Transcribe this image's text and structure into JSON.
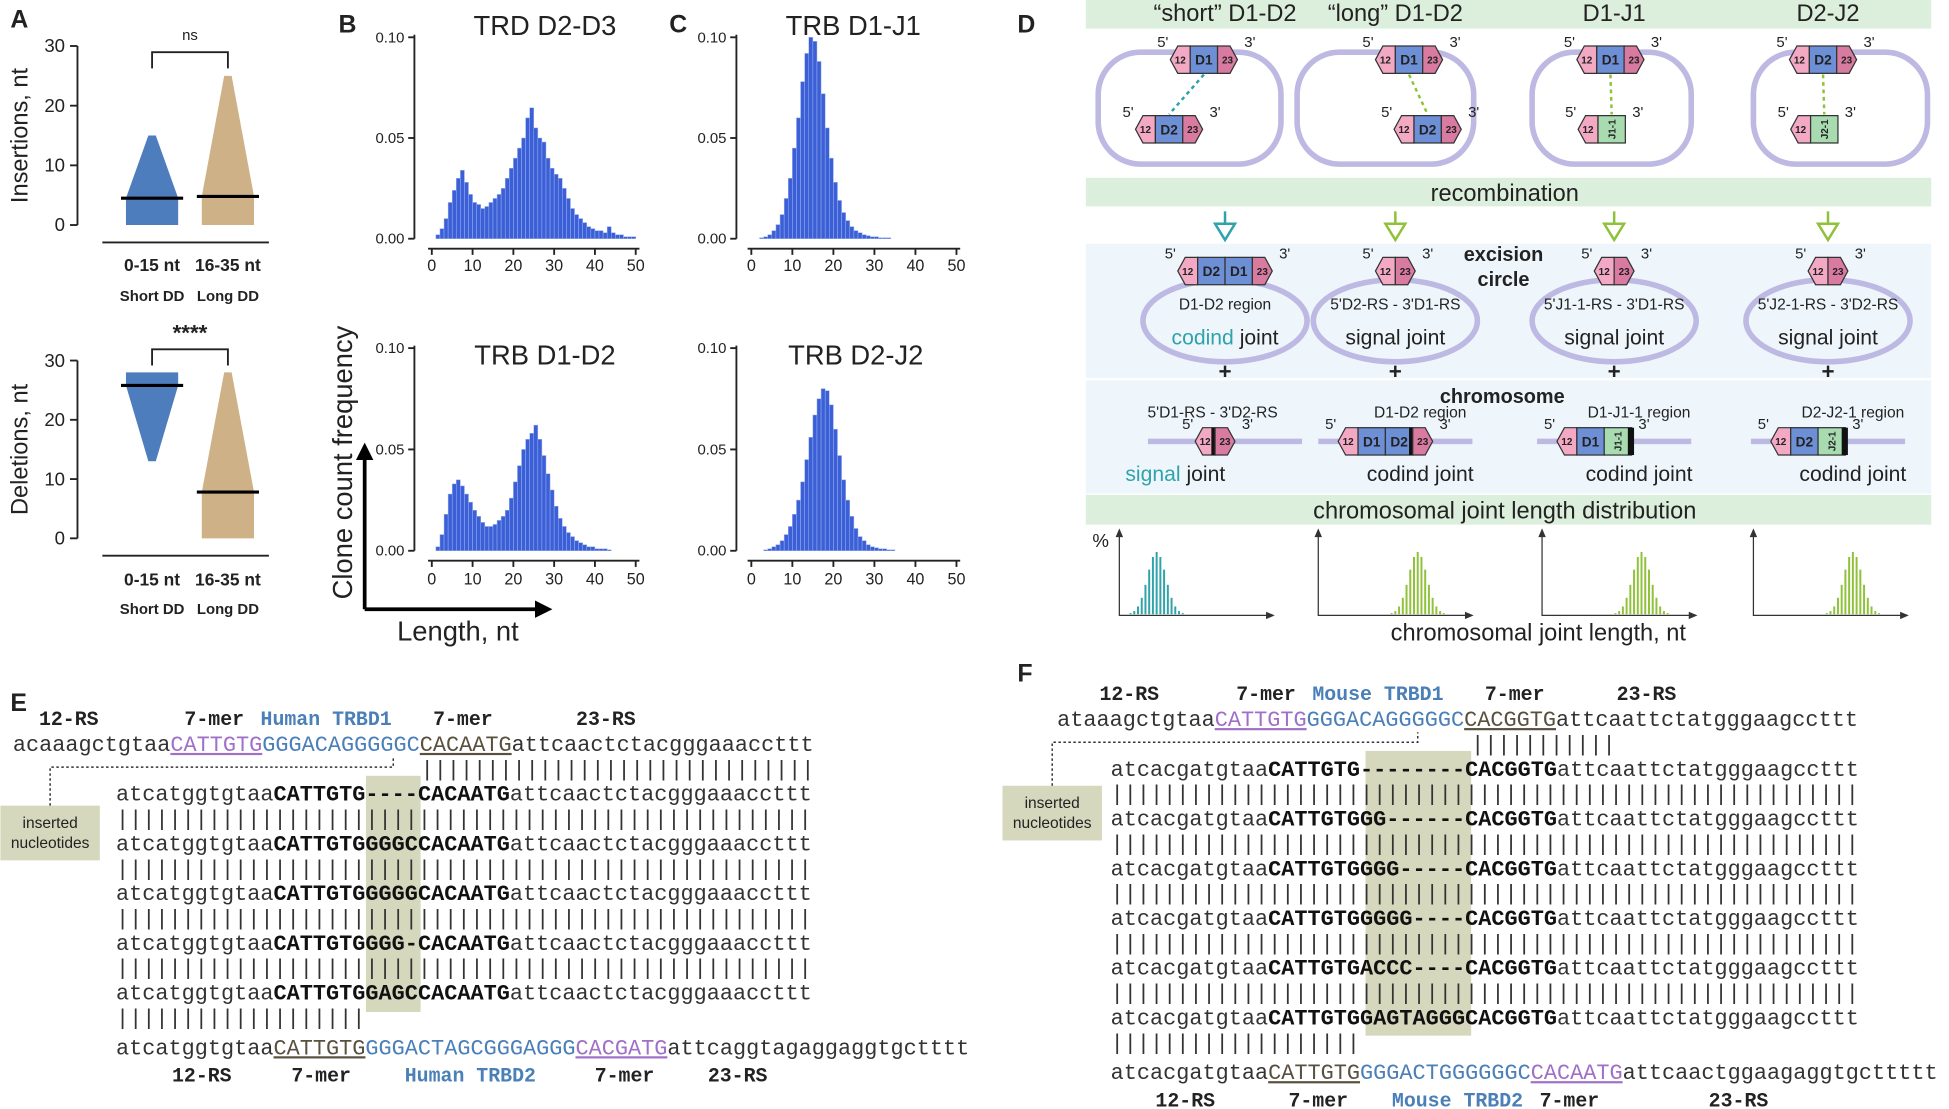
{
  "panel_labels": {
    "a": "A",
    "b": "B",
    "c": "C",
    "d": "D",
    "e": "E",
    "f": "F"
  },
  "chart_data": [
    {
      "type": "dot",
      "ylabel": "Insertions, nt",
      "categories": [
        "0-15 nt",
        "16-35 nt"
      ],
      "sublabels": [
        "Short DD",
        "Long DD"
      ],
      "significance": "ns",
      "ylim": [
        0,
        30
      ],
      "yticks": [
        0,
        10,
        20,
        30
      ],
      "groups": [
        {
          "min": 0,
          "max": 15,
          "median": 4.5,
          "color": "#3b6fb6"
        },
        {
          "min": 0,
          "max": 25,
          "median": 4.8,
          "color": "#c9a97a"
        }
      ]
    },
    {
      "type": "dot",
      "ylabel": "Deletions, nt",
      "categories": [
        "0-15 nt",
        "16-35 nt"
      ],
      "sublabels": [
        "Short DD",
        "Long DD"
      ],
      "significance": "****",
      "ylim": [
        0,
        30
      ],
      "yticks": [
        0,
        10,
        20,
        30
      ],
      "groups": [
        {
          "min": 13,
          "max": 28,
          "median": 25.8,
          "color": "#3b6fb6"
        },
        {
          "min": 0,
          "max": 28,
          "median": 7.8,
          "color": "#c9a97a"
        }
      ]
    },
    {
      "type": "histogram",
      "title": "TRD D2-D3",
      "color": "#3b5fd6",
      "bins": [
        0,
        1,
        2,
        3,
        4,
        5,
        6,
        7,
        8,
        9,
        10,
        11,
        12,
        13,
        14,
        15,
        16,
        17,
        18,
        19,
        20,
        21,
        22,
        23,
        24,
        25,
        26,
        27,
        28,
        29,
        30,
        31,
        32,
        33,
        34,
        35,
        36,
        37,
        38,
        39,
        40,
        41,
        42,
        43,
        44,
        45,
        46,
        47,
        48,
        49,
        50
      ],
      "counts": [
        0,
        0.002,
        0.005,
        0.01,
        0.018,
        0.024,
        0.03,
        0.034,
        0.028,
        0.022,
        0.018,
        0.017,
        0.015,
        0.016,
        0.018,
        0.02,
        0.022,
        0.025,
        0.03,
        0.035,
        0.04,
        0.045,
        0.05,
        0.06,
        0.065,
        0.055,
        0.05,
        0.048,
        0.04,
        0.035,
        0.032,
        0.03,
        0.025,
        0.02,
        0.015,
        0.012,
        0.01,
        0.008,
        0.006,
        0.005,
        0.004,
        0.004,
        0.003,
        0.006,
        0.003,
        0.002,
        0.002,
        0.001,
        0.001,
        0.001
      ],
      "xlim": [
        0,
        50
      ],
      "xticks": [
        0,
        10,
        20,
        30,
        40,
        50
      ],
      "ylim": [
        0,
        0.1
      ],
      "yticks": [
        {
          "value": 0,
          "label": "0.00"
        },
        {
          "value": 0.05,
          "label": "0.05"
        },
        {
          "value": 0.1,
          "label": "0.10"
        }
      ]
    },
    {
      "type": "histogram",
      "title": "TRB D1-D2",
      "color": "#3b5fd6",
      "bins": [
        0,
        1,
        2,
        3,
        4,
        5,
        6,
        7,
        8,
        9,
        10,
        11,
        12,
        13,
        14,
        15,
        16,
        17,
        18,
        19,
        20,
        21,
        22,
        23,
        24,
        25,
        26,
        27,
        28,
        29,
        30,
        31,
        32,
        33,
        34,
        35,
        36,
        37,
        38,
        39,
        40,
        41,
        42,
        43,
        44,
        45,
        46,
        47,
        48,
        49,
        50
      ],
      "counts": [
        0,
        0.002,
        0.008,
        0.018,
        0.028,
        0.033,
        0.035,
        0.032,
        0.028,
        0.024,
        0.02,
        0.017,
        0.014,
        0.012,
        0.012,
        0.013,
        0.015,
        0.017,
        0.02,
        0.026,
        0.034,
        0.042,
        0.05,
        0.055,
        0.058,
        0.062,
        0.055,
        0.047,
        0.038,
        0.03,
        0.022,
        0.016,
        0.012,
        0.009,
        0.007,
        0.005,
        0.004,
        0.003,
        0.002,
        0.002,
        0.001,
        0.001,
        0.001,
        0.0005,
        0,
        0,
        0,
        0,
        0,
        0
      ],
      "xlim": [
        0,
        50
      ],
      "xticks": [
        0,
        10,
        20,
        30,
        40,
        50
      ],
      "ylim": [
        0,
        0.1
      ],
      "yticks": [
        {
          "value": 0,
          "label": "0.00"
        },
        {
          "value": 0.05,
          "label": "0.05"
        },
        {
          "value": 0.1,
          "label": "0.10"
        }
      ]
    },
    {
      "type": "histogram",
      "title": "TRB D1-J1",
      "color": "#3b5fd6",
      "bins": [
        0,
        1,
        2,
        3,
        4,
        5,
        6,
        7,
        8,
        9,
        10,
        11,
        12,
        13,
        14,
        15,
        16,
        17,
        18,
        19,
        20,
        21,
        22,
        23,
        24,
        25,
        26,
        27,
        28,
        29,
        30,
        31,
        32,
        33,
        34,
        35,
        36,
        37,
        38,
        39,
        40,
        41,
        42,
        43,
        44,
        45,
        46,
        47,
        48,
        49,
        50
      ],
      "counts": [
        0,
        0,
        0.0005,
        0.001,
        0.002,
        0.004,
        0.007,
        0.012,
        0.02,
        0.03,
        0.045,
        0.06,
        0.078,
        0.092,
        0.1,
        0.098,
        0.088,
        0.072,
        0.055,
        0.04,
        0.028,
        0.019,
        0.013,
        0.009,
        0.006,
        0.004,
        0.003,
        0.002,
        0.0015,
        0.001,
        0.001,
        0.0005,
        0.0005,
        0.0005,
        0,
        0,
        0,
        0,
        0,
        0,
        0,
        0,
        0,
        0,
        0,
        0,
        0,
        0,
        0,
        0
      ],
      "xlim": [
        0,
        50
      ],
      "xticks": [
        0,
        10,
        20,
        30,
        40,
        50
      ],
      "ylim": [
        0,
        0.1
      ],
      "yticks": [
        {
          "value": 0,
          "label": "0.00"
        },
        {
          "value": 0.05,
          "label": "0.05"
        },
        {
          "value": 0.1,
          "label": "0.10"
        }
      ]
    },
    {
      "type": "histogram",
      "title": "TRB D2-J2",
      "color": "#3b5fd6",
      "bins": [
        0,
        1,
        2,
        3,
        4,
        5,
        6,
        7,
        8,
        9,
        10,
        11,
        12,
        13,
        14,
        15,
        16,
        17,
        18,
        19,
        20,
        21,
        22,
        23,
        24,
        25,
        26,
        27,
        28,
        29,
        30,
        31,
        32,
        33,
        34,
        35,
        36,
        37,
        38,
        39,
        40,
        41,
        42,
        43,
        44,
        45,
        46,
        47,
        48,
        49,
        50
      ],
      "counts": [
        0,
        0,
        0,
        0.0005,
        0.001,
        0.002,
        0.003,
        0.005,
        0.008,
        0.012,
        0.018,
        0.025,
        0.034,
        0.045,
        0.056,
        0.067,
        0.075,
        0.08,
        0.079,
        0.072,
        0.06,
        0.047,
        0.035,
        0.025,
        0.017,
        0.011,
        0.007,
        0.005,
        0.003,
        0.002,
        0.0015,
        0.001,
        0.001,
        0.0005,
        0.0005,
        0,
        0,
        0,
        0,
        0,
        0,
        0,
        0,
        0,
        0,
        0,
        0,
        0,
        0,
        0
      ],
      "xlim": [
        0,
        50
      ],
      "xticks": [
        0,
        10,
        20,
        30,
        40,
        50
      ],
      "ylim": [
        0,
        0.1
      ],
      "yticks": [
        {
          "value": 0,
          "label": "0.00"
        },
        {
          "value": 0.05,
          "label": "0.05"
        },
        {
          "value": 0.1,
          "label": "0.10"
        }
      ]
    }
  ],
  "histogram_axes": {
    "ylabel": "Clone count frequency",
    "xlabel": "Length, nt"
  },
  "d": {
    "columns": [
      {
        "title": "“short” D1-D2",
        "upper": "D1",
        "lower": "D2",
        "accent": "#2fa3aa",
        "highlight_first_word": true,
        "circle_genes": [
          "D2",
          "D1"
        ],
        "circle_region": "D1-D2 region",
        "circle_joint": [
          "codind",
          "joint"
        ],
        "chromosome_region": "5'D1-RS - 3'D2-RS",
        "chromosome_joint": [
          "signal",
          "joint"
        ]
      },
      {
        "title": "“long” D1-D2",
        "upper": "D1",
        "lower": "D2",
        "accent": "#8fc23a",
        "highlight_first_word": false,
        "circle_region": "5'D2-RS - 3'D1-RS",
        "circle_joint": [
          "signal",
          "joint"
        ],
        "chromosome_genes": [
          "D1",
          "D2"
        ],
        "chromosome_region": "D1-D2 region",
        "chromosome_joint": [
          "codind",
          "joint"
        ]
      },
      {
        "title": "D1-J1",
        "upper": "D1",
        "lower": "J1-1",
        "accent": "#8fc23a",
        "highlight_first_word": false,
        "circle_region": "5'J1-1-RS - 3'D1-RS",
        "circle_joint": [
          "signal",
          "joint"
        ],
        "chromosome_genes": [
          "D1",
          "J1-1"
        ],
        "chromosome_region": "D1-J1-1 region",
        "chromosome_joint": [
          "codind",
          "joint"
        ]
      },
      {
        "title": "D2-J2",
        "upper": "D2",
        "lower": "J2-1",
        "accent": "#8fc23a",
        "highlight_first_word": false,
        "circle_region": "5'J2-1-RS - 3'D2-RS",
        "circle_joint": [
          "signal",
          "joint"
        ],
        "chromosome_genes": [
          "D2",
          "J2-1"
        ],
        "chromosome_region": "D2-J2-1 region",
        "chromosome_joint": [
          "codind",
          "joint"
        ]
      }
    ],
    "recombination": "recombination",
    "excision_circle": [
      "excision",
      "circle"
    ],
    "chromosome": "chromosome",
    "plus": "+",
    "distribution": "chromosomal joint length distribution",
    "percent": "%",
    "x_label": "chromosomal joint length, nt",
    "five_prime": "5'",
    "three_prime": "3'",
    "rs12": "12",
    "rs23": "23"
  },
  "e": {
    "header": [
      "12-RS",
      "7-mer",
      "Human TRBD1",
      "7-mer",
      "23-RS"
    ],
    "top": [
      "acaaagctgtaa",
      "CATTGTG",
      "GGGACAGGGGGC",
      "CACAATG",
      "attcaactctacgggaaaccttt"
    ],
    "match_top": "||||||||||||||||||||||||||||||",
    "rows": {
      "left": [
        "atcatggtgtaa",
        "CATTGTG"
      ],
      "right": [
        "CACAATG",
        "attcaactctacgggaaaccttt"
      ]
    },
    "inserts": [
      "----",
      "GGGC",
      "GGGG",
      "GGG-",
      "GAGC"
    ],
    "match_rows": "|||||||||||||||||||||||||||||||||||||||||||||||||||||",
    "match_bottom": "|||||||||||||||||||",
    "bottom": [
      "atcatggtgtaa",
      "CATTGTG",
      "GGGACTAGCGGGAGGG",
      "CACGATG",
      "attcaggtagaggaggtgctttt"
    ],
    "footer": [
      "12-RS",
      "7-mer",
      "Human TRBD2",
      "7-mer",
      "23-RS"
    ],
    "inserted_label": [
      "inserted",
      "nucleotides"
    ]
  },
  "f": {
    "header": [
      "12-RS",
      "7-mer",
      "Mouse TRBD1",
      "7-mer",
      "23-RS"
    ],
    "top": [
      "ataaagctgtaa",
      "CATTGTG",
      "GGGACAGGGGGC",
      "CACGGTG",
      "attcaattctatgggaagccttt"
    ],
    "match_top": "|||||||||||",
    "rows": {
      "left": [
        "atcacgatgtaa",
        "CATTGTG"
      ],
      "right": [
        "CACGGTG",
        "attcaattctatgggaagccttt"
      ]
    },
    "inserts": [
      "--------",
      "GG------",
      "GGG-----",
      "GGGG----",
      "ACCC----",
      "GAGTAGGG"
    ],
    "match_rows": "|||||||||||||||||||||||||||||||||||||||||||||||||||||||||",
    "match_bottom": "|||||||||||||||||||",
    "bottom": [
      "atcacgatgtaa",
      "CATTGTG",
      "GGGACTGGGGGGC",
      "CACAATG",
      "attcaactggaagaggtgcttttt"
    ],
    "footer": [
      "12-RS",
      "7-mer",
      "Mouse TRBD2",
      "7-mer",
      "23-RS"
    ],
    "inserted_label": [
      "inserted",
      "nucleotides"
    ]
  }
}
